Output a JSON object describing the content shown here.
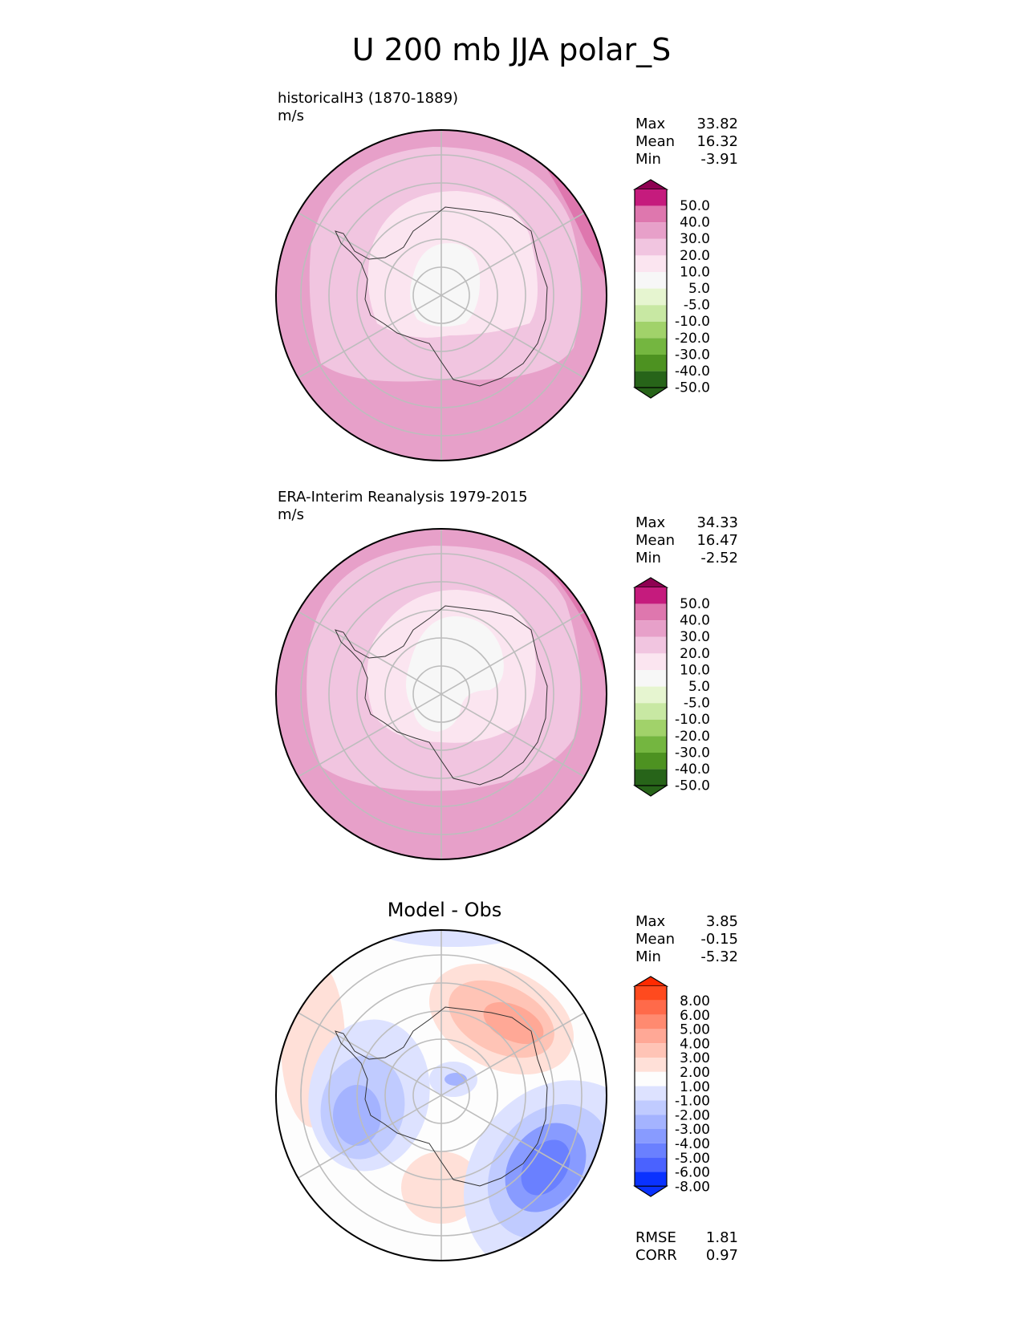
{
  "figure": {
    "title": "U 200 mb JJA polar_S"
  },
  "panels": [
    {
      "id": "model",
      "title": "historicalH3 (1870-1889)",
      "units": "m/s",
      "stats": [
        {
          "label": "Max",
          "value": "33.82"
        },
        {
          "label": "Mean",
          "value": "16.32"
        },
        {
          "label": "Min",
          "value": "-3.91"
        }
      ],
      "colorbar": {
        "labels": [
          "50.0",
          "40.0",
          "30.0",
          "20.0",
          "10.0",
          "5.0",
          "-5.0",
          "-10.0",
          "-20.0",
          "-30.0",
          "-40.0",
          "-50.0"
        ],
        "colors": [
          "#8e0152",
          "#c51b7d",
          "#de77ae",
          "#e7a0c9",
          "#f1c5e0",
          "#fbe5f0",
          "#f7f7f7",
          "#e6f5d0",
          "#c8e8a3",
          "#a1d26a",
          "#74b640",
          "#4d9221",
          "#276419"
        ]
      }
    },
    {
      "id": "obs",
      "title": "ERA-Interim Reanalysis 1979-2015",
      "units": "m/s",
      "stats": [
        {
          "label": "Max",
          "value": "34.33"
        },
        {
          "label": "Mean",
          "value": "16.47"
        },
        {
          "label": "Min",
          "value": "-2.52"
        }
      ],
      "colorbar": {
        "labels": [
          "50.0",
          "40.0",
          "30.0",
          "20.0",
          "10.0",
          "5.0",
          "-5.0",
          "-10.0",
          "-20.0",
          "-30.0",
          "-40.0",
          "-50.0"
        ],
        "colors": [
          "#8e0152",
          "#c51b7d",
          "#de77ae",
          "#e7a0c9",
          "#f1c5e0",
          "#fbe5f0",
          "#f7f7f7",
          "#e6f5d0",
          "#c8e8a3",
          "#a1d26a",
          "#74b640",
          "#4d9221",
          "#276419"
        ]
      }
    },
    {
      "id": "diff",
      "title": "Model - Obs",
      "stats": [
        {
          "label": "Max",
          "value": "3.85"
        },
        {
          "label": "Mean",
          "value": "-0.15"
        },
        {
          "label": "Min",
          "value": "-5.32"
        }
      ],
      "colorbar": {
        "labels": [
          "8.00",
          "6.00",
          "5.00",
          "4.00",
          "3.00",
          "2.00",
          "1.00",
          "-1.00",
          "-2.00",
          "-3.00",
          "-4.00",
          "-5.00",
          "-6.00",
          "-8.00"
        ],
        "colors": [
          "#ff2a00",
          "#ff4a1e",
          "#ff6a4a",
          "#ff8a70",
          "#ffa896",
          "#ffc4b6",
          "#ffe0d8",
          "#fdfdfd",
          "#dde2ff",
          "#c0cbff",
          "#a4b3ff",
          "#889bff",
          "#6a80ff",
          "#4a62ff",
          "#0a32ff"
        ]
      },
      "metrics": [
        {
          "label": "RMSE",
          "value": "1.81"
        },
        {
          "label": "CORR",
          "value": "0.97"
        }
      ]
    }
  ]
}
